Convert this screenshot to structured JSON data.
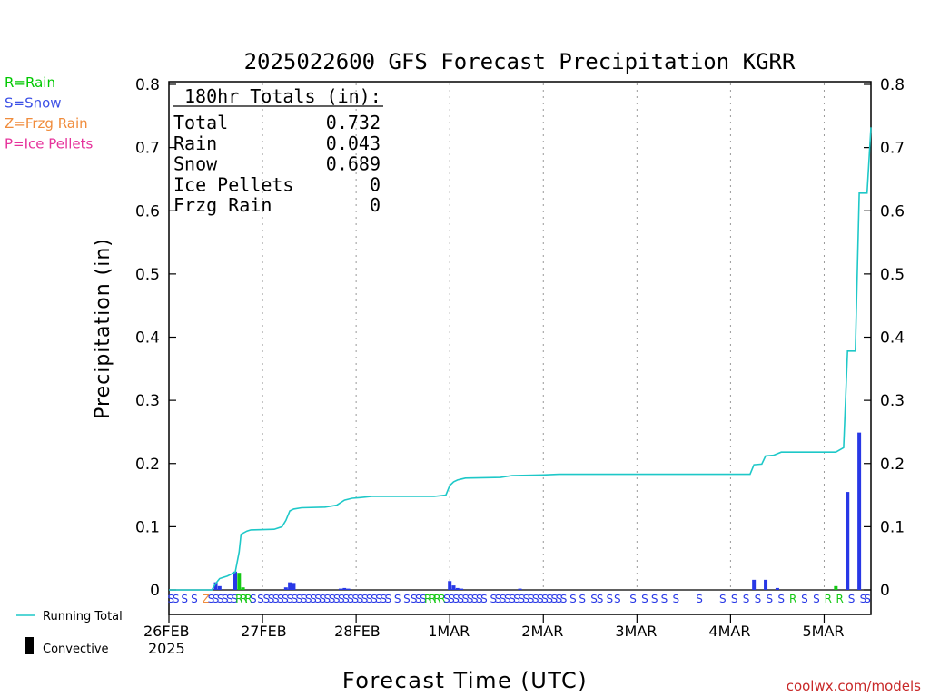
{
  "chart_data": {
    "type": "bar",
    "title": "2025022600 GFS Forecast Precipitation KGRR",
    "xlabel": "Forecast Time (UTC)",
    "ylabel": "Precipitation (in)",
    "ylim": [
      0,
      0.8
    ],
    "y_ticks": [
      "0",
      "0.1",
      "0.2",
      "0.3",
      "0.4",
      "0.5",
      "0.6",
      "0.7",
      "0.8"
    ],
    "x_range_hours": [
      0,
      180
    ],
    "x_ticks": [
      {
        "label": "26FEB",
        "sublabel": "2025",
        "hour": 0
      },
      {
        "label": "27FEB",
        "sublabel": "",
        "hour": 24
      },
      {
        "label": "28FEB",
        "sublabel": "",
        "hour": 48
      },
      {
        "label": "1MAR",
        "sublabel": "",
        "hour": 72
      },
      {
        "label": "2MAR",
        "sublabel": "",
        "hour": 96
      },
      {
        "label": "3MAR",
        "sublabel": "",
        "hour": 120
      },
      {
        "label": "4MAR",
        "sublabel": "",
        "hour": 144
      },
      {
        "label": "5MAR",
        "sublabel": "",
        "hour": 168
      }
    ],
    "grid": "vertical dotted at day boundaries",
    "ptype_legend": [
      {
        "text": "R=Rain",
        "color": "#00c800"
      },
      {
        "text": "S=Snow",
        "color": "#3c50e6"
      },
      {
        "text": "Z=Frzg Rain",
        "color": "#f08c3c"
      },
      {
        "text": "P=Ice Pellets",
        "color": "#e6329b"
      }
    ],
    "series_legend": {
      "running_total": "Running Total",
      "convective": "Convective"
    },
    "totals_box": {
      "heading": "180hr Totals (in):",
      "rows": [
        {
          "label": "Total",
          "value": "0.732"
        },
        {
          "label": "Rain",
          "value": "0.043"
        },
        {
          "label": "Snow",
          "value": "0.689"
        },
        {
          "label": "Ice Pellets",
          "value": "0"
        },
        {
          "label": "Frzg Rain",
          "value": "0"
        }
      ]
    },
    "bars": [
      {
        "hour": 12,
        "value": 0.012,
        "type": "S"
      },
      {
        "hour": 13,
        "value": 0.006,
        "type": "S"
      },
      {
        "hour": 17,
        "value": 0.029,
        "type": "S"
      },
      {
        "hour": 18,
        "value": 0.027,
        "type": "R"
      },
      {
        "hour": 19,
        "value": 0.004,
        "type": "R"
      },
      {
        "hour": 30,
        "value": 0.004,
        "type": "S"
      },
      {
        "hour": 31,
        "value": 0.012,
        "type": "S"
      },
      {
        "hour": 32,
        "value": 0.011,
        "type": "S"
      },
      {
        "hour": 44,
        "value": 0.002,
        "type": "S"
      },
      {
        "hour": 45,
        "value": 0.003,
        "type": "S"
      },
      {
        "hour": 46,
        "value": 0.002,
        "type": "S"
      },
      {
        "hour": 72,
        "value": 0.014,
        "type": "S"
      },
      {
        "hour": 73,
        "value": 0.007,
        "type": "S"
      },
      {
        "hour": 74,
        "value": 0.003,
        "type": "S"
      },
      {
        "hour": 75,
        "value": 0.002,
        "type": "S"
      },
      {
        "hour": 90,
        "value": 0.002,
        "type": "S"
      },
      {
        "hour": 150,
        "value": 0.016,
        "type": "S"
      },
      {
        "hour": 153,
        "value": 0.016,
        "type": "S"
      },
      {
        "hour": 156,
        "value": 0.003,
        "type": "S"
      },
      {
        "hour": 171,
        "value": 0.006,
        "type": "R"
      },
      {
        "hour": 174,
        "value": 0.155,
        "type": "S"
      },
      {
        "hour": 177,
        "value": 0.249,
        "type": "S"
      }
    ],
    "running_total": [
      [
        0,
        0
      ],
      [
        11,
        0
      ],
      [
        12,
        0.01
      ],
      [
        13,
        0.018
      ],
      [
        15,
        0.022
      ],
      [
        17,
        0.028
      ],
      [
        18,
        0.06
      ],
      [
        18.5,
        0.088
      ],
      [
        20,
        0.093
      ],
      [
        21,
        0.095
      ],
      [
        27,
        0.096
      ],
      [
        29,
        0.1
      ],
      [
        30,
        0.11
      ],
      [
        31,
        0.125
      ],
      [
        32,
        0.128
      ],
      [
        34,
        0.13
      ],
      [
        40,
        0.131
      ],
      [
        43,
        0.134
      ],
      [
        45,
        0.142
      ],
      [
        47,
        0.145
      ],
      [
        49,
        0.146
      ],
      [
        52,
        0.148
      ],
      [
        68,
        0.148
      ],
      [
        71,
        0.15
      ],
      [
        72,
        0.165
      ],
      [
        73,
        0.171
      ],
      [
        74,
        0.174
      ],
      [
        76,
        0.177
      ],
      [
        85,
        0.178
      ],
      [
        88,
        0.181
      ],
      [
        96,
        0.182
      ],
      [
        100,
        0.183
      ],
      [
        149,
        0.183
      ],
      [
        150,
        0.198
      ],
      [
        152,
        0.199
      ],
      [
        153,
        0.212
      ],
      [
        155,
        0.213
      ],
      [
        157,
        0.218
      ],
      [
        171,
        0.218
      ],
      [
        173,
        0.225
      ],
      [
        174,
        0.378
      ],
      [
        176,
        0.378
      ],
      [
        177,
        0.628
      ],
      [
        179,
        0.628
      ],
      [
        180,
        0.732
      ]
    ],
    "ptype_row": [
      {
        "hour": 0.5,
        "t": "S"
      },
      {
        "hour": 1.8,
        "t": "S"
      },
      {
        "hour": 4,
        "t": "S"
      },
      {
        "hour": 6.5,
        "t": "S"
      },
      {
        "hour": 9.5,
        "t": "Z"
      },
      {
        "hour": 10.8,
        "t": "S"
      },
      {
        "hour": 12,
        "t": "S"
      },
      {
        "hour": 13.2,
        "t": "S"
      },
      {
        "hour": 14.4,
        "t": "S"
      },
      {
        "hour": 15.6,
        "t": "S"
      },
      {
        "hour": 16.8,
        "t": "S"
      },
      {
        "hour": 18,
        "t": "R"
      },
      {
        "hour": 19.2,
        "t": "R"
      },
      {
        "hour": 20.4,
        "t": "R"
      },
      {
        "hour": 21.6,
        "t": "S"
      },
      {
        "hour": 23.5,
        "t": "S"
      },
      {
        "hour": 25,
        "t": "S"
      },
      {
        "hour": 26.2,
        "t": "S"
      },
      {
        "hour": 27.4,
        "t": "S"
      },
      {
        "hour": 28.6,
        "t": "S"
      },
      {
        "hour": 29.8,
        "t": "S"
      },
      {
        "hour": 31,
        "t": "S"
      },
      {
        "hour": 32.2,
        "t": "S"
      },
      {
        "hour": 33.4,
        "t": "S"
      },
      {
        "hour": 34.6,
        "t": "S"
      },
      {
        "hour": 35.8,
        "t": "S"
      },
      {
        "hour": 37,
        "t": "S"
      },
      {
        "hour": 38.2,
        "t": "S"
      },
      {
        "hour": 39.4,
        "t": "S"
      },
      {
        "hour": 40.6,
        "t": "S"
      },
      {
        "hour": 41.8,
        "t": "S"
      },
      {
        "hour": 43,
        "t": "S"
      },
      {
        "hour": 44.2,
        "t": "S"
      },
      {
        "hour": 45.4,
        "t": "S"
      },
      {
        "hour": 46.6,
        "t": "S"
      },
      {
        "hour": 47.8,
        "t": "S"
      },
      {
        "hour": 49,
        "t": "S"
      },
      {
        "hour": 50.2,
        "t": "S"
      },
      {
        "hour": 51.4,
        "t": "S"
      },
      {
        "hour": 52.6,
        "t": "S"
      },
      {
        "hour": 53.8,
        "t": "S"
      },
      {
        "hour": 55,
        "t": "S"
      },
      {
        "hour": 56.2,
        "t": "S"
      },
      {
        "hour": 58.6,
        "t": "S"
      },
      {
        "hour": 61,
        "t": "S"
      },
      {
        "hour": 62.8,
        "t": "S"
      },
      {
        "hour": 64,
        "t": "S"
      },
      {
        "hour": 65.2,
        "t": "S"
      },
      {
        "hour": 66.4,
        "t": "R"
      },
      {
        "hour": 67.6,
        "t": "R"
      },
      {
        "hour": 68.8,
        "t": "R"
      },
      {
        "hour": 70,
        "t": "R"
      },
      {
        "hour": 71.2,
        "t": "S"
      },
      {
        "hour": 72.4,
        "t": "S"
      },
      {
        "hour": 73.6,
        "t": "S"
      },
      {
        "hour": 74.8,
        "t": "S"
      },
      {
        "hour": 76,
        "t": "S"
      },
      {
        "hour": 77.2,
        "t": "S"
      },
      {
        "hour": 78.4,
        "t": "S"
      },
      {
        "hour": 79.6,
        "t": "S"
      },
      {
        "hour": 80.8,
        "t": "S"
      },
      {
        "hour": 83.2,
        "t": "S"
      },
      {
        "hour": 84.4,
        "t": "S"
      },
      {
        "hour": 85.6,
        "t": "S"
      },
      {
        "hour": 86.8,
        "t": "S"
      },
      {
        "hour": 88,
        "t": "S"
      },
      {
        "hour": 89.2,
        "t": "S"
      },
      {
        "hour": 90.4,
        "t": "S"
      },
      {
        "hour": 91.6,
        "t": "S"
      },
      {
        "hour": 92.8,
        "t": "S"
      },
      {
        "hour": 94,
        "t": "S"
      },
      {
        "hour": 95.2,
        "t": "S"
      },
      {
        "hour": 96.4,
        "t": "S"
      },
      {
        "hour": 97.6,
        "t": "S"
      },
      {
        "hour": 98.8,
        "t": "S"
      },
      {
        "hour": 100,
        "t": "S"
      },
      {
        "hour": 101.2,
        "t": "S"
      },
      {
        "hour": 103.6,
        "t": "S"
      },
      {
        "hour": 106,
        "t": "S"
      },
      {
        "hour": 109,
        "t": "S"
      },
      {
        "hour": 110.5,
        "t": "S"
      },
      {
        "hour": 113,
        "t": "S"
      },
      {
        "hour": 115,
        "t": "S"
      },
      {
        "hour": 119,
        "t": "S"
      },
      {
        "hour": 122,
        "t": "S"
      },
      {
        "hour": 124.5,
        "t": "S"
      },
      {
        "hour": 127,
        "t": "S"
      },
      {
        "hour": 130,
        "t": "S"
      },
      {
        "hour": 136,
        "t": "S"
      },
      {
        "hour": 142,
        "t": "S"
      },
      {
        "hour": 145,
        "t": "S"
      },
      {
        "hour": 148,
        "t": "S"
      },
      {
        "hour": 151,
        "t": "S"
      },
      {
        "hour": 154,
        "t": "S"
      },
      {
        "hour": 157,
        "t": "S"
      },
      {
        "hour": 160,
        "t": "R"
      },
      {
        "hour": 163,
        "t": "S"
      },
      {
        "hour": 166,
        "t": "S"
      },
      {
        "hour": 169,
        "t": "R"
      },
      {
        "hour": 172,
        "t": "R"
      },
      {
        "hour": 175,
        "t": "S"
      },
      {
        "hour": 178,
        "t": "S"
      },
      {
        "hour": 181,
        "t": "S"
      }
    ],
    "colors": {
      "snow": "#2838e6",
      "rain": "#14c814",
      "running_total": "#1ec8c8",
      "convective": "#000000",
      "credit": "#c82828"
    },
    "credit": "coolwx.com/models"
  }
}
